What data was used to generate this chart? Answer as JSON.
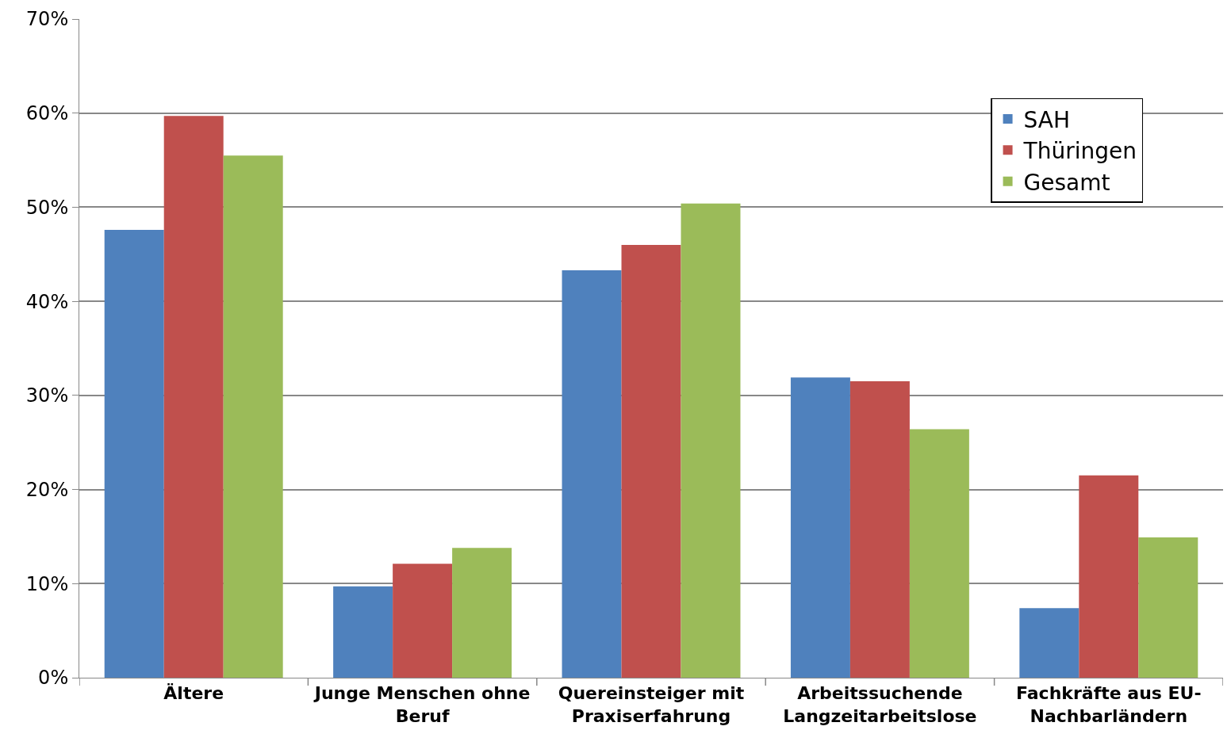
{
  "chart_data": {
    "type": "bar",
    "categories": [
      "Ältere",
      "Junge Menschen ohne Beruf",
      "Quereinsteiger mit Praxiserfahrung",
      "Arbeitssuchende Langzeitarbeitslose",
      "Fachkräfte aus EU-Nachbarländern"
    ],
    "series": [
      {
        "name": "SAH",
        "color": "#4f81bd",
        "values": [
          47.6,
          9.7,
          43.3,
          31.9,
          7.4
        ]
      },
      {
        "name": "Thüringen",
        "color": "#c0504d",
        "values": [
          59.7,
          12.1,
          46.0,
          31.5,
          21.5
        ]
      },
      {
        "name": "Gesamt",
        "color": "#9bbb59",
        "values": [
          55.5,
          13.8,
          50.4,
          26.4,
          14.9
        ]
      }
    ],
    "ylim": [
      0,
      70
    ],
    "yticks": [
      {
        "value": 0,
        "label": "0%"
      },
      {
        "value": 10,
        "label": "10%"
      },
      {
        "value": 20,
        "label": "20%"
      },
      {
        "value": 30,
        "label": "30%"
      },
      {
        "value": 40,
        "label": "40%"
      },
      {
        "value": 50,
        "label": "50%"
      },
      {
        "value": 60,
        "label": "60%"
      },
      {
        "value": 70,
        "label": "70%"
      }
    ],
    "grid": "y",
    "legend": "top right"
  }
}
